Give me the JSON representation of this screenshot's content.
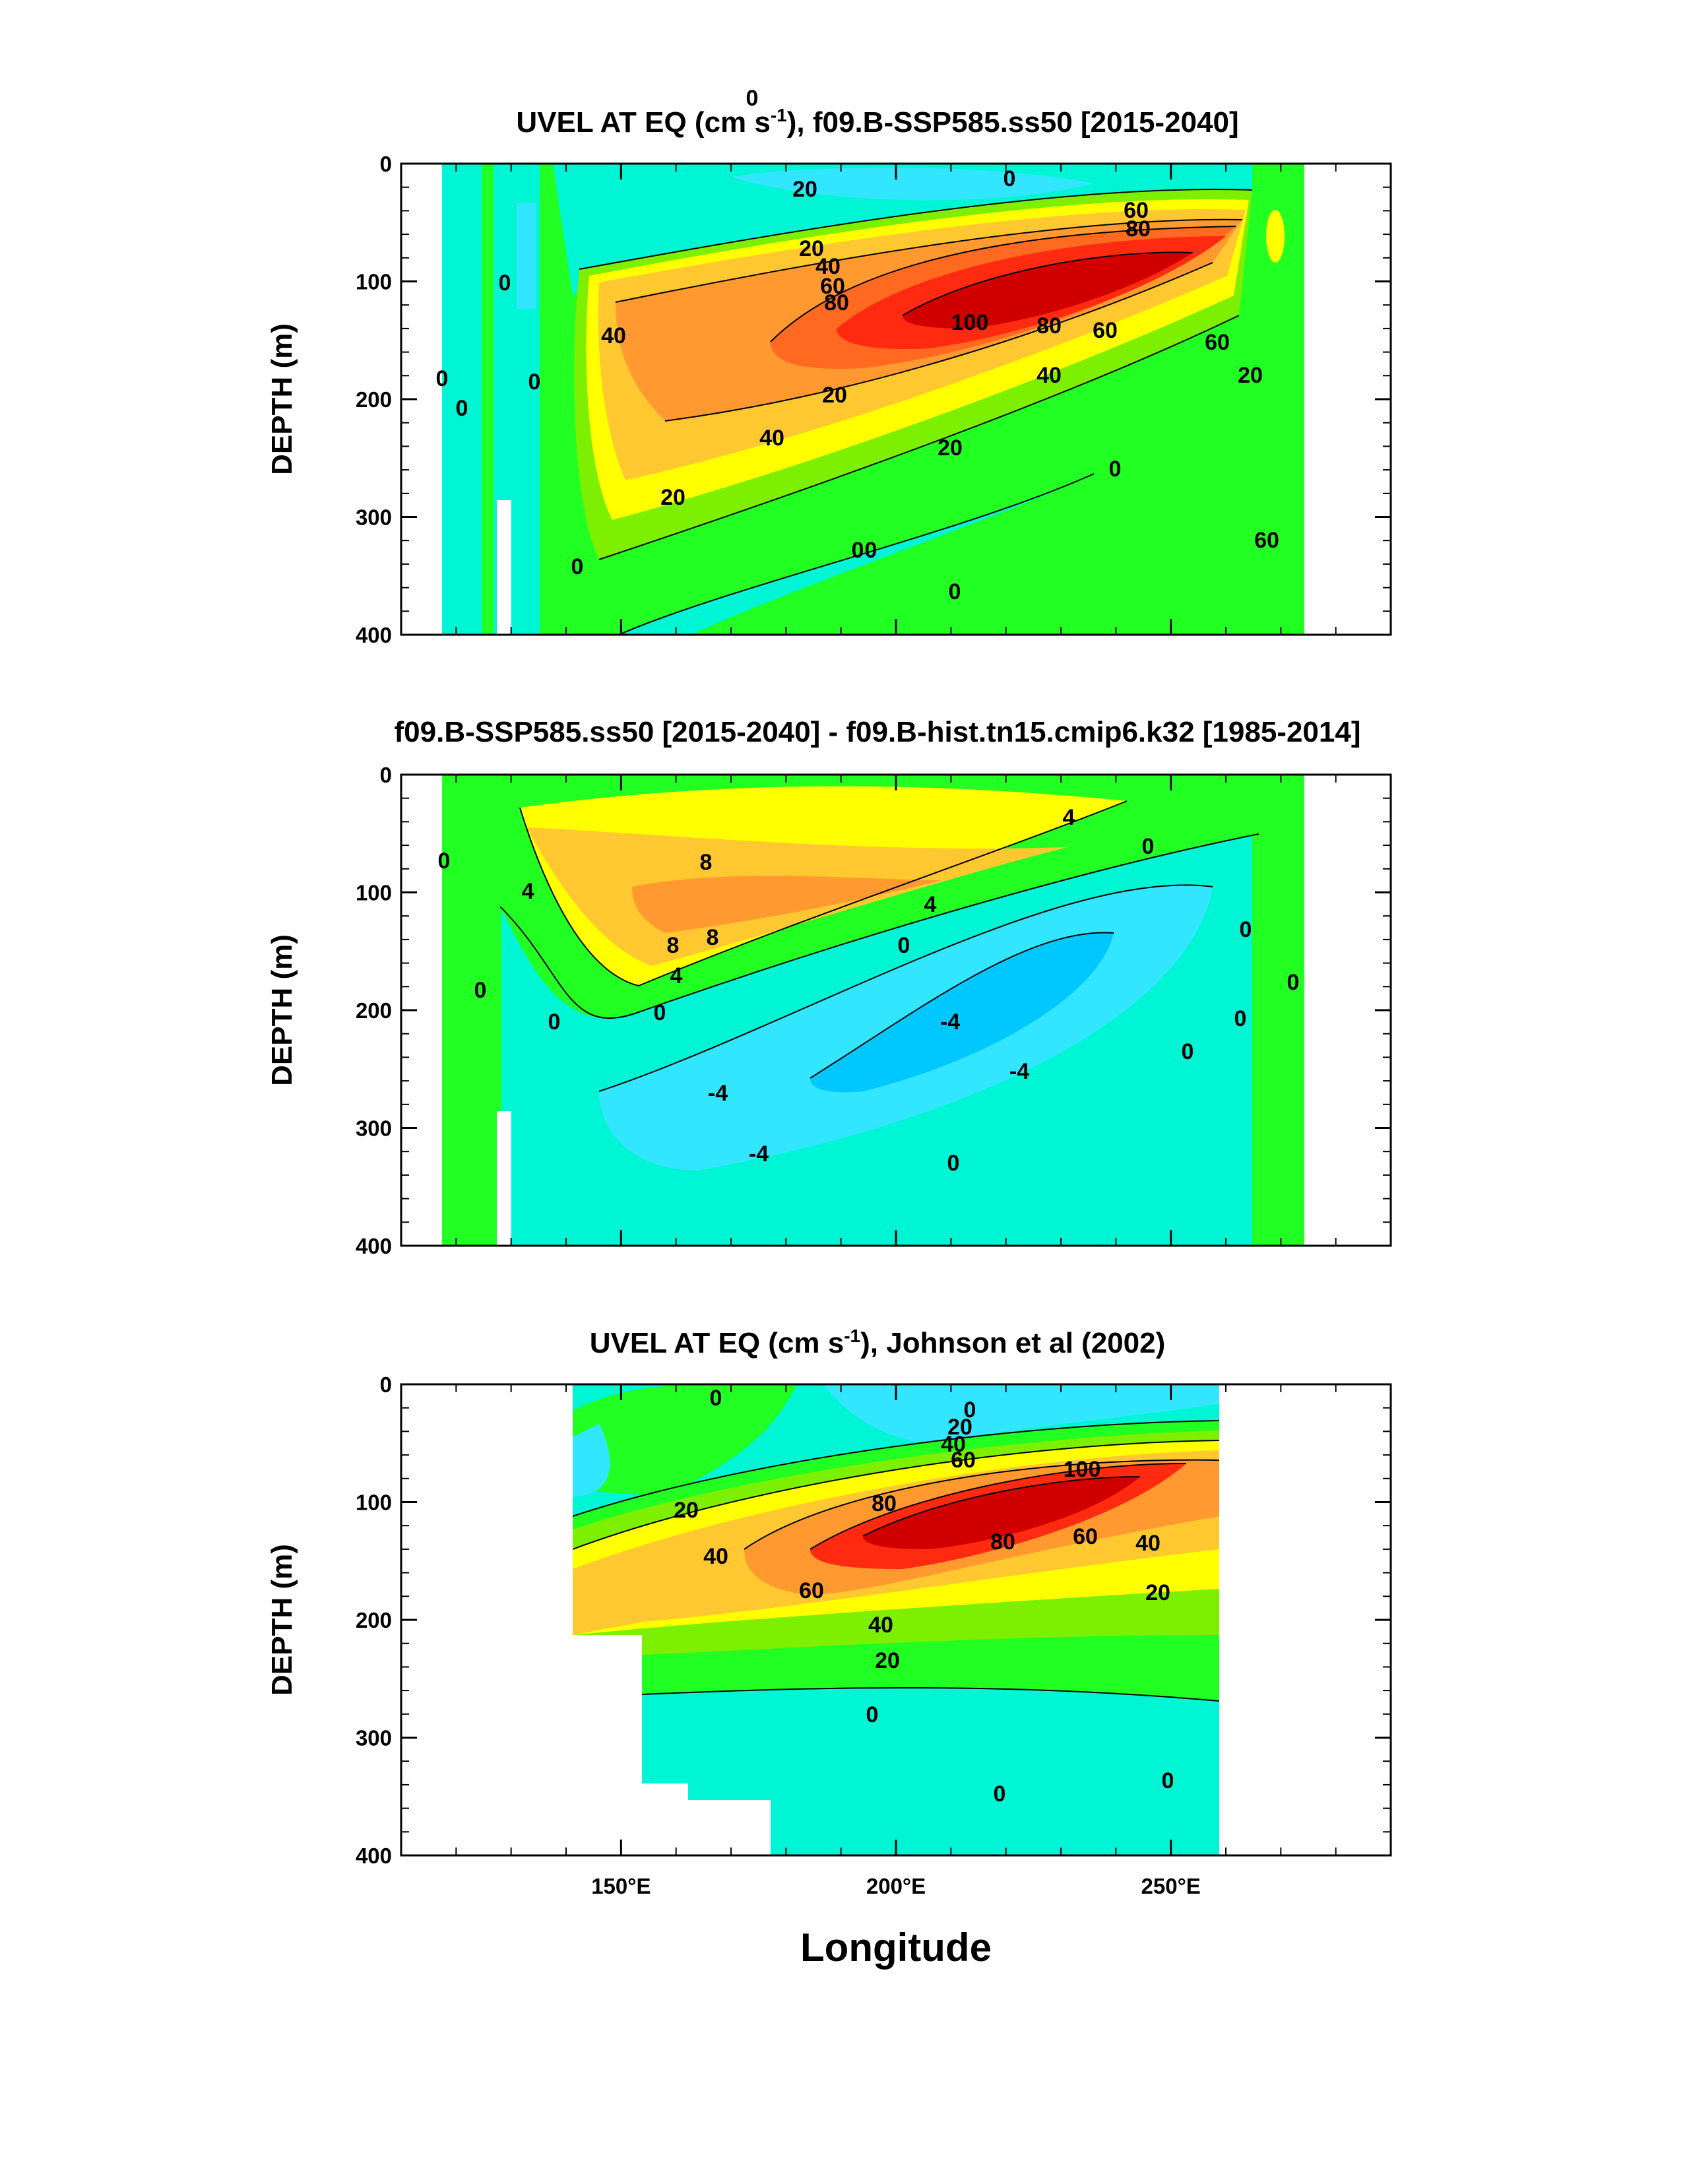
{
  "chart_data": [
    {
      "type": "contour",
      "title_pre": "UVEL AT EQ (cm s",
      "title_sup": "-1",
      "title_post": "), f09.B-SSP585.ss50 [2015-2040]",
      "ylabel": "DEPTH (m)",
      "xlabel": "",
      "ylim": [
        400,
        0
      ],
      "xlim": [
        110,
        290
      ],
      "yticks": [
        "0",
        "100",
        "200",
        "300",
        "400"
      ],
      "xticks": [
        "",
        "",
        ""
      ],
      "contour_labels": [
        "0",
        "0",
        "20",
        "60",
        "80",
        "20",
        "40",
        "60",
        "80",
        "100",
        "80",
        "60",
        "40",
        "20",
        "60",
        "40",
        "20",
        "20",
        "0",
        "0",
        "0",
        "0",
        "0",
        "0",
        "0",
        "0",
        "0",
        "20",
        "40",
        "60"
      ],
      "colors": [
        "#00f5d4",
        "#00c8ff",
        "#33e6ff",
        "#22ff22",
        "#7cf000",
        "#ffff00",
        "#ffc830",
        "#ff9930",
        "#ff6a20",
        "#ff2a10",
        "#d00000"
      ]
    },
    {
      "type": "contour",
      "title": "f09.B-SSP585.ss50 [2015-2040] - f09.B-hist.tn15.cmip6.k32 [1985-2014]",
      "ylabel": "DEPTH (m)",
      "xlabel": "",
      "ylim": [
        400,
        0
      ],
      "xlim": [
        110,
        290
      ],
      "yticks": [
        "0",
        "100",
        "200",
        "300",
        "400"
      ],
      "xticks": [
        "",
        "",
        ""
      ],
      "contour_labels": [
        "8",
        "8",
        "8",
        "4",
        "4",
        "4",
        "4",
        "0",
        "0",
        "0",
        "0",
        "0",
        "0",
        "0",
        "0",
        "0",
        "0",
        "-4",
        "-4",
        "-4",
        "-4",
        "0"
      ]
    },
    {
      "type": "contour",
      "title_pre": "UVEL AT EQ (cm s",
      "title_sup": "-1",
      "title_post": "), Johnson et al (2002)",
      "ylabel": "DEPTH (m)",
      "xlabel": "Longitude",
      "ylim": [
        400,
        0
      ],
      "xlim": [
        110,
        290
      ],
      "yticks": [
        "0",
        "100",
        "200",
        "300",
        "400"
      ],
      "xticks": [
        "150°E",
        "200°E",
        "250°E"
      ],
      "contour_labels": [
        "0",
        "0",
        "20",
        "40",
        "60",
        "80",
        "100",
        "20",
        "40",
        "80",
        "60",
        "40",
        "20",
        "60",
        "40",
        "20",
        "0",
        "0",
        "0"
      ]
    }
  ]
}
